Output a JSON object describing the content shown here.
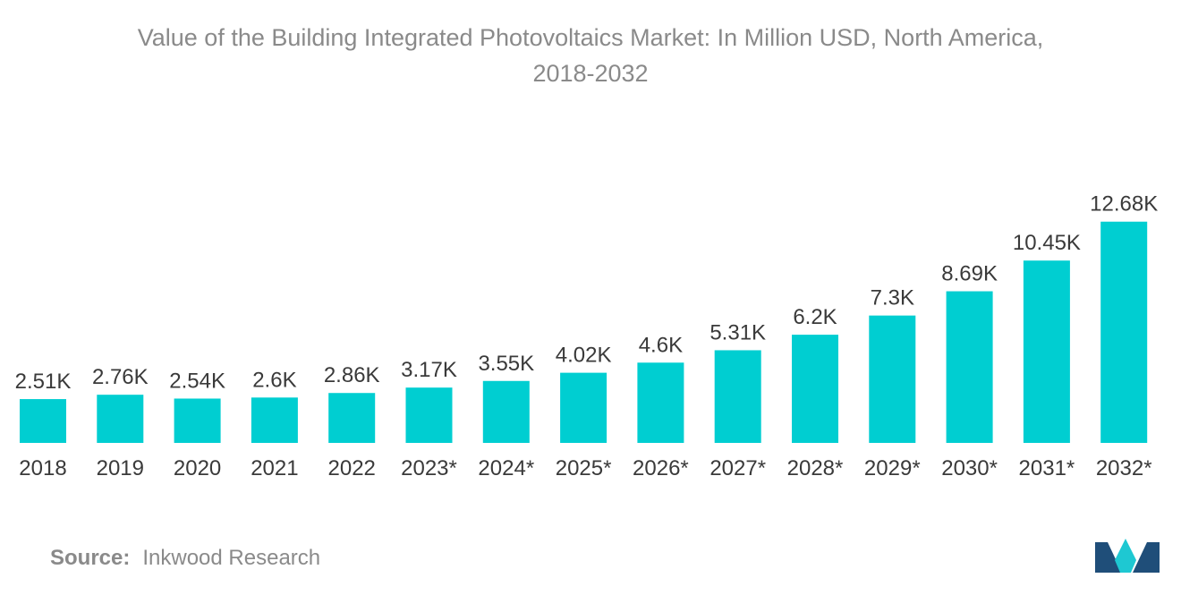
{
  "chart_data": {
    "type": "bar",
    "title_line1": "Value of the Building Integrated Photovoltaics Market: In Million USD, North America,",
    "title_line2": "2018-2032",
    "categories": [
      "2018",
      "2019",
      "2020",
      "2021",
      "2022",
      "2023*",
      "2024*",
      "2025*",
      "2026*",
      "2027*",
      "2028*",
      "2029*",
      "2030*",
      "2031*",
      "2032*"
    ],
    "values": [
      2.51,
      2.76,
      2.54,
      2.6,
      2.86,
      3.17,
      3.55,
      4.02,
      4.6,
      5.31,
      6.2,
      7.3,
      8.69,
      10.45,
      12.68
    ],
    "value_labels": [
      "2.51K",
      "2.76K",
      "2.54K",
      "2.6K",
      "2.86K",
      "3.17K",
      "3.55K",
      "4.02K",
      "4.6K",
      "5.31K",
      "6.2K",
      "7.3K",
      "8.69K",
      "10.45K",
      "12.68K"
    ],
    "unit": "K (Million USD)",
    "xlabel": "",
    "ylabel": "",
    "grid": false,
    "bar_color": "#00CED1"
  },
  "source": {
    "label": "Source:",
    "value": "Inkwood Research"
  },
  "logo": {
    "icon": "mordor-intelligence-logo-icon",
    "colors": [
      "#1f4e79",
      "#1ec8d2"
    ]
  }
}
